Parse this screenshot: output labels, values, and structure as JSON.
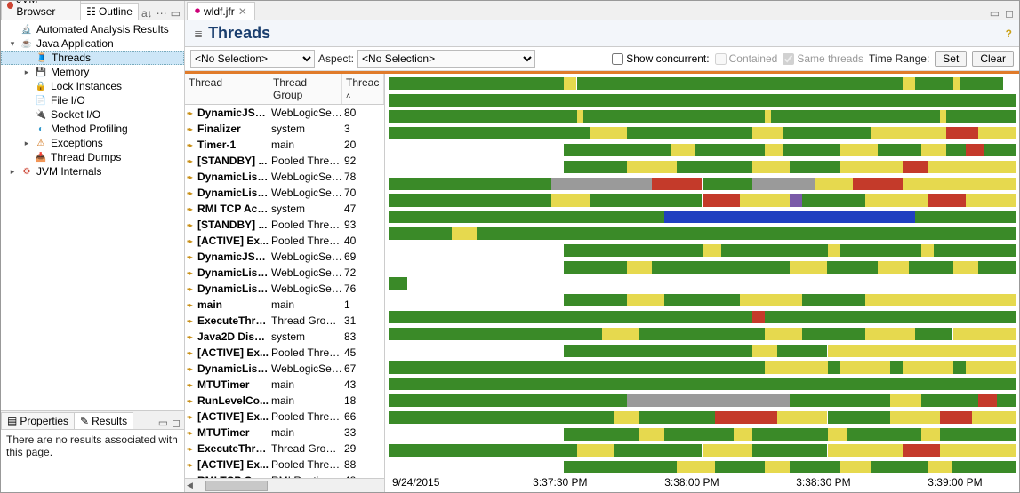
{
  "leftTabs": {
    "jvm": "JVM Browser",
    "outline": "Outline"
  },
  "tree": [
    {
      "d": 1,
      "tw": "",
      "icon": "🔬",
      "color": "#c43",
      "label": "Automated Analysis Results"
    },
    {
      "d": 1,
      "tw": "▾",
      "icon": "☕",
      "color": "#c43",
      "label": "Java Application"
    },
    {
      "d": 2,
      "tw": "",
      "icon": "🧵",
      "color": "#888",
      "label": "Threads",
      "sel": true
    },
    {
      "d": 2,
      "tw": "▸",
      "icon": "💾",
      "color": "#2a6",
      "label": "Memory"
    },
    {
      "d": 2,
      "tw": "",
      "icon": "🔒",
      "color": "#c60",
      "label": "Lock Instances"
    },
    {
      "d": 2,
      "tw": "",
      "icon": "📄",
      "color": "#c60",
      "label": "File I/O"
    },
    {
      "d": 2,
      "tw": "",
      "icon": "🔌",
      "color": "#c60",
      "label": "Socket I/O"
    },
    {
      "d": 2,
      "tw": "",
      "icon": "◐",
      "color": "#39c",
      "label": "Method Profiling"
    },
    {
      "d": 2,
      "tw": "▸",
      "icon": "⚠",
      "color": "#c60",
      "label": "Exceptions"
    },
    {
      "d": 2,
      "tw": "",
      "icon": "📥",
      "color": "#a6c",
      "label": "Thread Dumps"
    },
    {
      "d": 1,
      "tw": "▸",
      "icon": "⚙",
      "color": "#c43",
      "label": "JVM Internals"
    }
  ],
  "midTabs": {
    "properties": "Properties",
    "results": "Results"
  },
  "propsBody": "There are no results associated with this page.",
  "editorTab": {
    "label": "wldf.jfr",
    "icon": "⏺"
  },
  "header": {
    "title": "Threads"
  },
  "filters": {
    "sel1": "<No Selection>",
    "aspectLabel": "Aspect:",
    "sel2": "<No Selection>",
    "showConcurrent": "Show concurrent:",
    "contained": "Contained",
    "sameThreads": "Same threads",
    "timeRange": "Time Range:",
    "set": "Set",
    "clear": "Clear"
  },
  "tableHead": {
    "thread": "Thread",
    "group": "Thread Group",
    "count": "Threac"
  },
  "threads": [
    {
      "name": "DynamicJSS...",
      "group": "WebLogicServer",
      "count": 80
    },
    {
      "name": "Finalizer",
      "group": "system",
      "count": 3
    },
    {
      "name": "Timer-1",
      "group": "main",
      "count": 20
    },
    {
      "name": "[STANDBY] ...",
      "group": "Pooled Threads",
      "count": 92
    },
    {
      "name": "DynamicList...",
      "group": "WebLogicServer",
      "count": 78
    },
    {
      "name": "DynamicList...",
      "group": "WebLogicServer",
      "count": 70
    },
    {
      "name": "RMI TCP Acc...",
      "group": "system",
      "count": 47
    },
    {
      "name": "[STANDBY] ...",
      "group": "Pooled Threads",
      "count": 93
    },
    {
      "name": "[ACTIVE] Ex...",
      "group": "Pooled Threads",
      "count": 40
    },
    {
      "name": "DynamicJSS...",
      "group": "WebLogicServer",
      "count": 69
    },
    {
      "name": "DynamicList...",
      "group": "WebLogicServer",
      "count": 72
    },
    {
      "name": "DynamicList...",
      "group": "WebLogicServer",
      "count": 76
    },
    {
      "name": "main",
      "group": "main",
      "count": 1
    },
    {
      "name": "ExecuteThre...",
      "group": "Thread Group f...",
      "count": 31
    },
    {
      "name": "Java2D Disp...",
      "group": "system",
      "count": 83
    },
    {
      "name": "[ACTIVE] Ex...",
      "group": "Pooled Threads",
      "count": 45
    },
    {
      "name": "DynamicList...",
      "group": "WebLogicServer",
      "count": 67
    },
    {
      "name": "MTUTimer",
      "group": "main",
      "count": 43
    },
    {
      "name": "RunLevelCo...",
      "group": "main",
      "count": 18
    },
    {
      "name": "[ACTIVE] Ex...",
      "group": "Pooled Threads",
      "count": 66
    },
    {
      "name": "MTUTimer",
      "group": "main",
      "count": 33
    },
    {
      "name": "ExecuteThre...",
      "group": "Thread Group f...",
      "count": 29
    },
    {
      "name": "[ACTIVE] Ex...",
      "group": "Pooled Threads",
      "count": 88
    },
    {
      "name": "RMI TCP Co...",
      "group": "RMI Runtime",
      "count": 48
    }
  ],
  "axis": {
    "date": "9/24/2015",
    "ticks": [
      {
        "pos": 23,
        "label": "3:37:30 PM"
      },
      {
        "pos": 44,
        "label": "3:38:00 PM"
      },
      {
        "pos": 65,
        "label": "3:38:30 PM"
      },
      {
        "pos": 86,
        "label": "3:39:00 PM"
      }
    ]
  },
  "chart": {
    "colors": {
      "green": "#3a8a28",
      "yellow": "#e6d94e",
      "red": "#c43a2a",
      "blue": "#2040c0",
      "grey": "#9a9a9a",
      "purple": "#7a5aa8"
    },
    "rows": [
      [
        [
          "green",
          0,
          28
        ],
        [
          "yellow",
          28,
          2
        ],
        [
          "green",
          30,
          68
        ],
        [
          "yellow",
          82,
          2
        ],
        [
          "yellow",
          90,
          1
        ]
      ],
      [
        [
          "green",
          0,
          100
        ]
      ],
      [
        [
          "green",
          0,
          100
        ],
        [
          "yellow",
          30,
          1
        ],
        [
          "yellow",
          60,
          1
        ],
        [
          "yellow",
          88,
          1
        ]
      ],
      [
        [
          "green",
          0,
          32
        ],
        [
          "yellow",
          32,
          6
        ],
        [
          "green",
          38,
          20
        ],
        [
          "yellow",
          58,
          5
        ],
        [
          "green",
          63,
          14
        ],
        [
          "yellow",
          77,
          12
        ],
        [
          "red",
          89,
          5
        ],
        [
          "yellow",
          94,
          6
        ]
      ],
      [
        [
          "green",
          28,
          72
        ],
        [
          "yellow",
          45,
          4
        ],
        [
          "yellow",
          60,
          3
        ],
        [
          "yellow",
          72,
          6
        ],
        [
          "yellow",
          85,
          4
        ],
        [
          "red",
          92,
          3
        ]
      ],
      [
        [
          "green",
          28,
          10
        ],
        [
          "yellow",
          38,
          8
        ],
        [
          "green",
          46,
          12
        ],
        [
          "yellow",
          58,
          6
        ],
        [
          "green",
          64,
          8
        ],
        [
          "yellow",
          72,
          10
        ],
        [
          "red",
          82,
          4
        ],
        [
          "yellow",
          86,
          14
        ]
      ],
      [
        [
          "green",
          0,
          26
        ],
        [
          "grey",
          26,
          16
        ],
        [
          "red",
          42,
          8
        ],
        [
          "green",
          50,
          8
        ],
        [
          "grey",
          58,
          10
        ],
        [
          "yellow",
          68,
          6
        ],
        [
          "red",
          74,
          8
        ],
        [
          "yellow",
          82,
          18
        ]
      ],
      [
        [
          "green",
          0,
          26
        ],
        [
          "yellow",
          26,
          6
        ],
        [
          "green",
          32,
          18
        ],
        [
          "red",
          50,
          6
        ],
        [
          "yellow",
          56,
          8
        ],
        [
          "purple",
          64,
          2
        ],
        [
          "green",
          66,
          10
        ],
        [
          "yellow",
          76,
          10
        ],
        [
          "red",
          86,
          6
        ],
        [
          "yellow",
          92,
          8
        ]
      ],
      [
        [
          "green",
          0,
          44
        ],
        [
          "blue",
          44,
          40
        ],
        [
          "green",
          84,
          16
        ]
      ],
      [
        [
          "green",
          0,
          10
        ],
        [
          "yellow",
          10,
          4
        ],
        [
          "green",
          14,
          86
        ]
      ],
      [
        [
          "green",
          28,
          72
        ],
        [
          "yellow",
          50,
          3
        ],
        [
          "yellow",
          70,
          2
        ],
        [
          "yellow",
          85,
          2
        ]
      ],
      [
        [
          "green",
          28,
          10
        ],
        [
          "yellow",
          38,
          4
        ],
        [
          "green",
          42,
          58
        ],
        [
          "yellow",
          64,
          6
        ],
        [
          "yellow",
          78,
          5
        ],
        [
          "yellow",
          90,
          4
        ]
      ],
      [
        [
          "green",
          0,
          3
        ]
      ],
      [
        [
          "green",
          28,
          10
        ],
        [
          "yellow",
          38,
          6
        ],
        [
          "green",
          44,
          12
        ],
        [
          "yellow",
          56,
          10
        ],
        [
          "green",
          66,
          10
        ],
        [
          "yellow",
          76,
          24
        ]
      ],
      [
        [
          "green",
          0,
          58
        ],
        [
          "red",
          58,
          2
        ],
        [
          "green",
          60,
          40
        ]
      ],
      [
        [
          "green",
          0,
          34
        ],
        [
          "yellow",
          34,
          6
        ],
        [
          "green",
          40,
          20
        ],
        [
          "yellow",
          60,
          6
        ],
        [
          "green",
          66,
          10
        ],
        [
          "yellow",
          76,
          8
        ],
        [
          "green",
          84,
          6
        ],
        [
          "yellow",
          90,
          10
        ]
      ],
      [
        [
          "green",
          28,
          30
        ],
        [
          "yellow",
          58,
          4
        ],
        [
          "green",
          62,
          8
        ],
        [
          "yellow",
          70,
          30
        ]
      ],
      [
        [
          "green",
          0,
          60
        ],
        [
          "yellow",
          60,
          40
        ],
        [
          "green",
          70,
          2
        ],
        [
          "green",
          80,
          2
        ],
        [
          "green",
          90,
          2
        ]
      ],
      [
        [
          "green",
          0,
          100
        ]
      ],
      [
        [
          "green",
          0,
          38
        ],
        [
          "grey",
          38,
          26
        ],
        [
          "green",
          64,
          36
        ],
        [
          "yellow",
          80,
          5
        ],
        [
          "red",
          94,
          3
        ]
      ],
      [
        [
          "green",
          0,
          36
        ],
        [
          "yellow",
          36,
          4
        ],
        [
          "green",
          40,
          12
        ],
        [
          "red",
          52,
          10
        ],
        [
          "yellow",
          62,
          8
        ],
        [
          "green",
          70,
          10
        ],
        [
          "yellow",
          80,
          8
        ],
        [
          "red",
          88,
          5
        ],
        [
          "yellow",
          93,
          7
        ]
      ],
      [
        [
          "green",
          28,
          72
        ],
        [
          "yellow",
          40,
          4
        ],
        [
          "yellow",
          55,
          3
        ],
        [
          "yellow",
          70,
          3
        ],
        [
          "yellow",
          85,
          3
        ]
      ],
      [
        [
          "green",
          0,
          30
        ],
        [
          "yellow",
          30,
          6
        ],
        [
          "green",
          36,
          14
        ],
        [
          "yellow",
          50,
          8
        ],
        [
          "green",
          58,
          12
        ],
        [
          "yellow",
          70,
          12
        ],
        [
          "red",
          82,
          6
        ],
        [
          "yellow",
          88,
          12
        ]
      ],
      [
        [
          "green",
          28,
          72
        ],
        [
          "yellow",
          46,
          6
        ],
        [
          "yellow",
          60,
          4
        ],
        [
          "yellow",
          72,
          5
        ],
        [
          "yellow",
          86,
          4
        ]
      ]
    ]
  }
}
